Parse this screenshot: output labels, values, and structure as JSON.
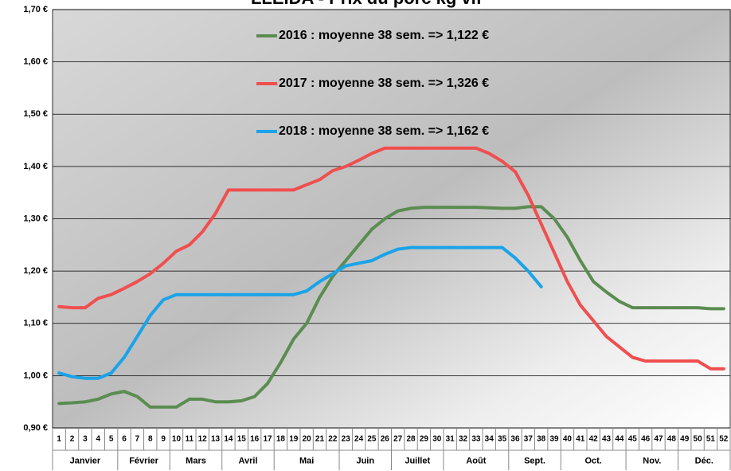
{
  "chart_data": {
    "type": "line",
    "title": "LLEIDA - Prix du porc kg vif",
    "categories": [
      "1",
      "2",
      "3",
      "4",
      "5",
      "6",
      "7",
      "8",
      "9",
      "10",
      "11",
      "12",
      "13",
      "14",
      "15",
      "16",
      "17",
      "18",
      "19",
      "20",
      "21",
      "22",
      "23",
      "24",
      "25",
      "26",
      "27",
      "28",
      "29",
      "30",
      "31",
      "32",
      "33",
      "34",
      "35",
      "36",
      "37",
      "38",
      "39",
      "40",
      "41",
      "42",
      "43",
      "44",
      "45",
      "46",
      "47",
      "48",
      "49",
      "50",
      "51",
      "52"
    ],
    "months": [
      "Janvier",
      "Février",
      "Mars",
      "Avril",
      "Mai",
      "Juin",
      "Juillet",
      "Août",
      "Sept.",
      "Oct.",
      "Nov.",
      "Déc."
    ],
    "ylim": [
      0.9,
      1.7
    ],
    "yticks": [
      {
        "value": 0.9,
        "label": "0,90 €"
      },
      {
        "value": 1.0,
        "label": "1,00 €"
      },
      {
        "value": 1.1,
        "label": "1,10 €"
      },
      {
        "value": 1.2,
        "label": "1,20 €"
      },
      {
        "value": 1.3,
        "label": "1,30 €"
      },
      {
        "value": 1.4,
        "label": "1,40 €"
      },
      {
        "value": 1.5,
        "label": "1,50 €"
      },
      {
        "value": 1.6,
        "label": "1,60 €"
      },
      {
        "value": 1.7,
        "label": "1,70 €"
      }
    ],
    "grid": true,
    "series": [
      {
        "name": "2016 : moyenne 38 sem. => 1,122 €",
        "color": "#5b8c51",
        "values": [
          0.947,
          0.948,
          0.95,
          0.955,
          0.965,
          0.97,
          0.96,
          0.94,
          0.94,
          0.94,
          0.955,
          0.955,
          0.95,
          0.95,
          0.952,
          0.96,
          0.985,
          1.025,
          1.07,
          1.1,
          1.15,
          1.19,
          1.22,
          1.25,
          1.28,
          1.3,
          1.315,
          1.32,
          1.322,
          1.322,
          1.322,
          1.322,
          1.322,
          1.321,
          1.32,
          1.32,
          1.323,
          1.323,
          1.3,
          1.265,
          1.22,
          1.18,
          1.16,
          1.142,
          1.13,
          1.13,
          1.13,
          1.13,
          1.13,
          1.13,
          1.128,
          1.128
        ]
      },
      {
        "name": "2017 : moyenne 38 sem. => 1,326 €",
        "color": "#f04f4f",
        "values": [
          1.132,
          1.13,
          1.13,
          1.148,
          1.155,
          1.167,
          1.18,
          1.195,
          1.215,
          1.238,
          1.25,
          1.275,
          1.31,
          1.355,
          1.355,
          1.355,
          1.355,
          1.355,
          1.355,
          1.365,
          1.375,
          1.392,
          1.4,
          1.412,
          1.425,
          1.435,
          1.435,
          1.435,
          1.435,
          1.435,
          1.435,
          1.435,
          1.435,
          1.425,
          1.41,
          1.39,
          1.345,
          1.29,
          1.235,
          1.18,
          1.135,
          1.105,
          1.075,
          1.055,
          1.035,
          1.028,
          1.028,
          1.028,
          1.028,
          1.028,
          1.013,
          1.013
        ]
      },
      {
        "name": "2018 : moyenne 38 sem. => 1,162 €",
        "color": "#1aa3e8",
        "values": [
          1.005,
          0.998,
          0.995,
          0.995,
          1.005,
          1.035,
          1.075,
          1.115,
          1.145,
          1.155,
          1.155,
          1.155,
          1.155,
          1.155,
          1.155,
          1.155,
          1.155,
          1.155,
          1.155,
          1.162,
          1.18,
          1.195,
          1.21,
          1.215,
          1.22,
          1.232,
          1.242,
          1.245,
          1.245,
          1.245,
          1.245,
          1.245,
          1.245,
          1.245,
          1.245,
          1.225,
          1.2,
          1.17,
          null,
          null,
          null,
          null,
          null,
          null,
          null,
          null,
          null,
          null,
          null,
          null,
          null,
          null
        ]
      }
    ]
  }
}
